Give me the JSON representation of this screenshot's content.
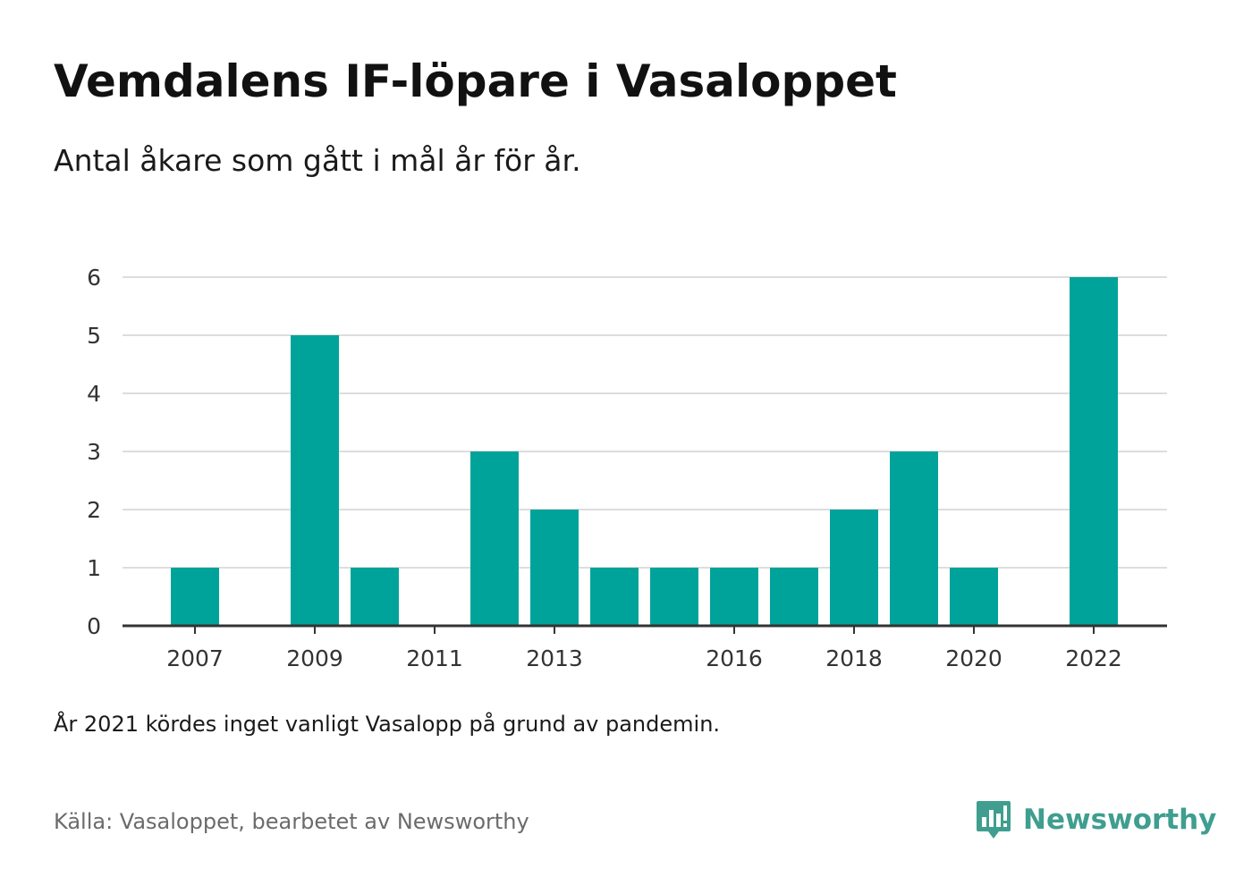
{
  "title": "Vemdalens IF-löpare i Vasaloppet",
  "subtitle": "Antal åkare som gått i mål år för år.",
  "note": "År 2021 kördes inget vanligt Vasalopp på grund av pandemin.",
  "source": "Källa: Vasaloppet, bearbetet av Newsworthy",
  "brand": {
    "name": "Newsworthy",
    "icon": "newsworthy-logo-icon"
  },
  "colors": {
    "bar": "#00a39a",
    "grid": "#dddddd",
    "axis": "#333333",
    "brand": "#3f9e8f"
  },
  "chart_data": {
    "type": "bar",
    "categories": [
      "2007",
      "2008",
      "2009",
      "2010",
      "2011",
      "2012",
      "2013",
      "2014",
      "2015",
      "2016",
      "2017",
      "2018",
      "2019",
      "2020",
      "2021",
      "2022"
    ],
    "values": [
      1,
      0,
      5,
      1,
      0,
      3,
      2,
      1,
      1,
      1,
      1,
      2,
      3,
      1,
      0,
      6
    ],
    "x_tick_labels": [
      "2007",
      "2009",
      "2011",
      "2013",
      "2016",
      "2018",
      "2020",
      "2022"
    ],
    "y_ticks": [
      0,
      1,
      2,
      3,
      4,
      5,
      6
    ],
    "ylim": [
      0,
      6
    ],
    "grid": true,
    "legend": "none"
  }
}
